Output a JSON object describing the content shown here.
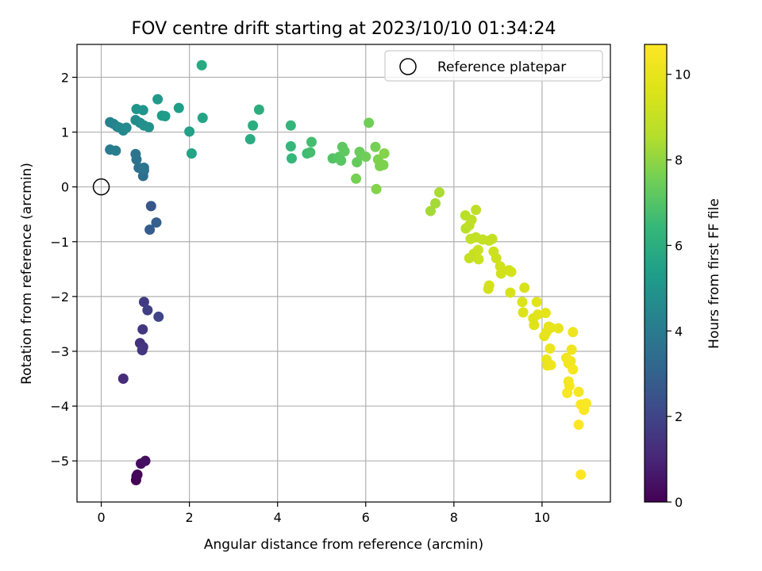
{
  "chart_data": {
    "type": "scatter",
    "title": "FOV centre drift starting at 2023/10/10 01:34:24",
    "xlabel": "Angular distance from reference (arcmin)",
    "ylabel": "Rotation from reference (arcmin)",
    "xlim": [
      -0.55,
      11.55
    ],
    "ylim": [
      -5.75,
      2.6
    ],
    "xticks": [
      0,
      2,
      4,
      6,
      8,
      10
    ],
    "yticks": [
      -5,
      -4,
      -3,
      -2,
      -1,
      0,
      1,
      2
    ],
    "xtick_labels": [
      "0",
      "2",
      "4",
      "6",
      "8",
      "10"
    ],
    "ytick_labels": [
      "−5",
      "−4",
      "−3",
      "−2",
      "−1",
      "0",
      "1",
      "2"
    ],
    "grid": true,
    "legend": {
      "position": "top-right",
      "entries": [
        {
          "label": "Reference platepar",
          "marker": "open-circle"
        }
      ]
    },
    "reference_point": {
      "x": 0,
      "y": 0
    },
    "colorbar": {
      "label": "Hours from first FF file",
      "colormap": "viridis",
      "range": [
        0,
        10.7
      ],
      "ticks": [
        0,
        2,
        4,
        6,
        8,
        10
      ],
      "tick_labels": [
        "0",
        "2",
        "4",
        "6",
        "8",
        "10"
      ]
    },
    "points": [
      {
        "x": 0.79,
        "y": -5.35,
        "h": 0.0
      },
      {
        "x": 0.8,
        "y": -5.28,
        "h": 0.1
      },
      {
        "x": 0.82,
        "y": -5.25,
        "h": 0.2
      },
      {
        "x": 0.9,
        "y": -5.05,
        "h": 0.3
      },
      {
        "x": 1.0,
        "y": -5.0,
        "h": 0.4
      },
      {
        "x": 0.5,
        "y": -3.5,
        "h": 1.2
      },
      {
        "x": 0.88,
        "y": -2.85,
        "h": 1.4
      },
      {
        "x": 0.95,
        "y": -2.92,
        "h": 1.5
      },
      {
        "x": 0.93,
        "y": -2.98,
        "h": 1.55
      },
      {
        "x": 0.94,
        "y": -2.6,
        "h": 1.6
      },
      {
        "x": 0.97,
        "y": -2.1,
        "h": 1.7
      },
      {
        "x": 1.05,
        "y": -2.25,
        "h": 1.8
      },
      {
        "x": 1.3,
        "y": -2.37,
        "h": 2.0
      },
      {
        "x": 1.13,
        "y": -0.35,
        "h": 2.6
      },
      {
        "x": 1.1,
        "y": -0.78,
        "h": 2.8
      },
      {
        "x": 1.25,
        "y": -0.65,
        "h": 2.9
      },
      {
        "x": 0.97,
        "y": 0.3,
        "h": 3.4
      },
      {
        "x": 0.95,
        "y": 0.2,
        "h": 3.5
      },
      {
        "x": 0.85,
        "y": 0.35,
        "h": 3.6
      },
      {
        "x": 0.8,
        "y": 0.5,
        "h": 3.7
      },
      {
        "x": 0.78,
        "y": 0.6,
        "h": 3.7
      },
      {
        "x": 0.97,
        "y": 0.35,
        "h": 3.8
      },
      {
        "x": 0.2,
        "y": 0.68,
        "h": 4.0
      },
      {
        "x": 0.33,
        "y": 0.66,
        "h": 4.1
      },
      {
        "x": 0.2,
        "y": 1.18,
        "h": 4.2
      },
      {
        "x": 0.28,
        "y": 1.15,
        "h": 4.3
      },
      {
        "x": 0.36,
        "y": 1.1,
        "h": 4.4
      },
      {
        "x": 0.42,
        "y": 1.08,
        "h": 4.5
      },
      {
        "x": 0.5,
        "y": 1.03,
        "h": 4.5
      },
      {
        "x": 0.57,
        "y": 1.08,
        "h": 4.6
      },
      {
        "x": 0.78,
        "y": 1.22,
        "h": 4.7
      },
      {
        "x": 0.88,
        "y": 1.17,
        "h": 4.7
      },
      {
        "x": 0.97,
        "y": 1.12,
        "h": 4.8
      },
      {
        "x": 1.08,
        "y": 1.09,
        "h": 4.9
      },
      {
        "x": 0.8,
        "y": 1.42,
        "h": 5.0
      },
      {
        "x": 0.95,
        "y": 1.4,
        "h": 5.0
      },
      {
        "x": 1.28,
        "y": 1.6,
        "h": 5.2
      },
      {
        "x": 1.38,
        "y": 1.3,
        "h": 5.2
      },
      {
        "x": 1.45,
        "y": 1.29,
        "h": 5.3
      },
      {
        "x": 1.76,
        "y": 1.44,
        "h": 5.4
      },
      {
        "x": 2.0,
        "y": 1.01,
        "h": 5.5
      },
      {
        "x": 2.05,
        "y": 0.61,
        "h": 5.6
      },
      {
        "x": 2.3,
        "y": 1.26,
        "h": 5.6
      },
      {
        "x": 2.28,
        "y": 2.22,
        "h": 5.8
      },
      {
        "x": 3.38,
        "y": 0.87,
        "h": 5.9
      },
      {
        "x": 3.44,
        "y": 1.12,
        "h": 6.0
      },
      {
        "x": 3.58,
        "y": 1.41,
        "h": 6.0
      },
      {
        "x": 4.3,
        "y": 1.12,
        "h": 6.3
      },
      {
        "x": 4.3,
        "y": 0.74,
        "h": 6.4
      },
      {
        "x": 4.32,
        "y": 0.52,
        "h": 6.4
      },
      {
        "x": 4.67,
        "y": 0.61,
        "h": 6.6
      },
      {
        "x": 4.74,
        "y": 0.63,
        "h": 6.7
      },
      {
        "x": 4.77,
        "y": 0.82,
        "h": 6.7
      },
      {
        "x": 5.25,
        "y": 0.52,
        "h": 7.0
      },
      {
        "x": 5.4,
        "y": 0.55,
        "h": 7.1
      },
      {
        "x": 5.44,
        "y": 0.48,
        "h": 7.1
      },
      {
        "x": 5.47,
        "y": 0.73,
        "h": 7.2
      },
      {
        "x": 5.52,
        "y": 0.65,
        "h": 7.2
      },
      {
        "x": 5.8,
        "y": 0.45,
        "h": 7.3
      },
      {
        "x": 5.86,
        "y": 0.64,
        "h": 7.4
      },
      {
        "x": 5.9,
        "y": 0.58,
        "h": 7.4
      },
      {
        "x": 6.0,
        "y": 0.55,
        "h": 7.5
      },
      {
        "x": 6.07,
        "y": 1.17,
        "h": 7.5
      },
      {
        "x": 5.78,
        "y": 0.15,
        "h": 7.6
      },
      {
        "x": 6.22,
        "y": 0.73,
        "h": 7.6
      },
      {
        "x": 6.28,
        "y": 0.5,
        "h": 7.7
      },
      {
        "x": 6.32,
        "y": 0.38,
        "h": 7.7
      },
      {
        "x": 6.4,
        "y": 0.4,
        "h": 7.7
      },
      {
        "x": 6.42,
        "y": 0.61,
        "h": 7.8
      },
      {
        "x": 6.24,
        "y": -0.04,
        "h": 7.8
      },
      {
        "x": 7.47,
        "y": -0.44,
        "h": 8.3
      },
      {
        "x": 7.58,
        "y": -0.3,
        "h": 8.3
      },
      {
        "x": 7.67,
        "y": -0.1,
        "h": 8.4
      },
      {
        "x": 8.26,
        "y": -0.52,
        "h": 8.7
      },
      {
        "x": 8.27,
        "y": -0.76,
        "h": 8.7
      },
      {
        "x": 8.35,
        "y": -0.7,
        "h": 8.8
      },
      {
        "x": 8.4,
        "y": -0.6,
        "h": 8.8
      },
      {
        "x": 8.5,
        "y": -0.42,
        "h": 8.8
      },
      {
        "x": 8.38,
        "y": -0.95,
        "h": 8.9
      },
      {
        "x": 8.5,
        "y": -0.92,
        "h": 8.9
      },
      {
        "x": 8.65,
        "y": -0.96,
        "h": 8.9
      },
      {
        "x": 8.8,
        "y": -0.98,
        "h": 9.0
      },
      {
        "x": 8.87,
        "y": -0.95,
        "h": 9.0
      },
      {
        "x": 8.35,
        "y": -1.3,
        "h": 9.0
      },
      {
        "x": 8.45,
        "y": -1.22,
        "h": 9.0
      },
      {
        "x": 8.55,
        "y": -1.15,
        "h": 9.1
      },
      {
        "x": 8.56,
        "y": -1.32,
        "h": 9.1
      },
      {
        "x": 8.9,
        "y": -1.18,
        "h": 9.2
      },
      {
        "x": 8.96,
        "y": -1.3,
        "h": 9.2
      },
      {
        "x": 9.05,
        "y": -1.45,
        "h": 9.3
      },
      {
        "x": 9.07,
        "y": -1.58,
        "h": 9.3
      },
      {
        "x": 9.25,
        "y": -1.52,
        "h": 9.3
      },
      {
        "x": 9.3,
        "y": -1.55,
        "h": 9.4
      },
      {
        "x": 8.8,
        "y": -1.8,
        "h": 9.4
      },
      {
        "x": 8.78,
        "y": -1.86,
        "h": 9.4
      },
      {
        "x": 9.28,
        "y": -1.93,
        "h": 9.5
      },
      {
        "x": 9.6,
        "y": -1.84,
        "h": 9.5
      },
      {
        "x": 9.55,
        "y": -2.1,
        "h": 9.6
      },
      {
        "x": 9.57,
        "y": -2.29,
        "h": 9.6
      },
      {
        "x": 9.8,
        "y": -2.4,
        "h": 9.7
      },
      {
        "x": 9.82,
        "y": -2.52,
        "h": 9.7
      },
      {
        "x": 9.88,
        "y": -2.1,
        "h": 9.8
      },
      {
        "x": 9.9,
        "y": -2.33,
        "h": 9.8
      },
      {
        "x": 10.08,
        "y": -2.3,
        "h": 9.9
      },
      {
        "x": 10.15,
        "y": -2.55,
        "h": 9.9
      },
      {
        "x": 10.05,
        "y": -2.72,
        "h": 9.9
      },
      {
        "x": 10.1,
        "y": -2.65,
        "h": 10.0
      },
      {
        "x": 10.2,
        "y": -2.57,
        "h": 10.0
      },
      {
        "x": 10.37,
        "y": -2.58,
        "h": 10.0
      },
      {
        "x": 10.18,
        "y": -2.95,
        "h": 10.1
      },
      {
        "x": 10.1,
        "y": -3.15,
        "h": 10.1
      },
      {
        "x": 10.12,
        "y": -3.26,
        "h": 10.1
      },
      {
        "x": 10.2,
        "y": -3.25,
        "h": 10.2
      },
      {
        "x": 10.7,
        "y": -2.65,
        "h": 10.2
      },
      {
        "x": 10.67,
        "y": -2.97,
        "h": 10.2
      },
      {
        "x": 10.55,
        "y": -3.12,
        "h": 10.3
      },
      {
        "x": 10.6,
        "y": -3.22,
        "h": 10.3
      },
      {
        "x": 10.65,
        "y": -3.18,
        "h": 10.3
      },
      {
        "x": 10.7,
        "y": -3.33,
        "h": 10.4
      },
      {
        "x": 10.6,
        "y": -3.55,
        "h": 10.4
      },
      {
        "x": 10.62,
        "y": -3.63,
        "h": 10.4
      },
      {
        "x": 10.57,
        "y": -3.76,
        "h": 10.5
      },
      {
        "x": 10.83,
        "y": -3.74,
        "h": 10.5
      },
      {
        "x": 10.88,
        "y": -3.97,
        "h": 10.6
      },
      {
        "x": 10.95,
        "y": -4.07,
        "h": 10.6
      },
      {
        "x": 11.0,
        "y": -3.95,
        "h": 10.6
      },
      {
        "x": 10.83,
        "y": -4.34,
        "h": 10.7
      },
      {
        "x": 10.88,
        "y": -5.25,
        "h": 10.7
      }
    ]
  }
}
